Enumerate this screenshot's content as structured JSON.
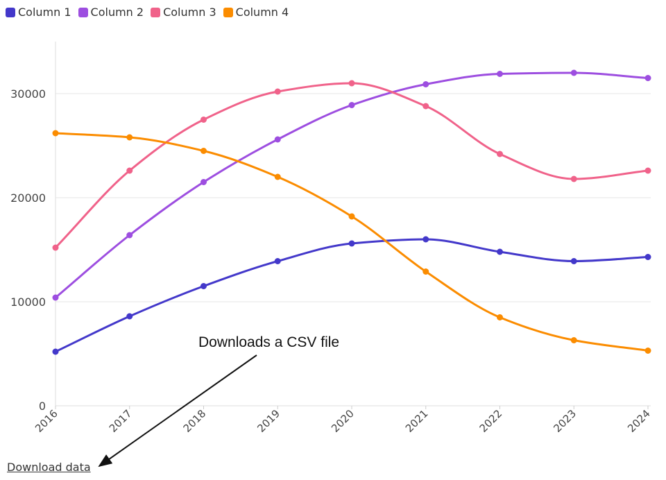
{
  "chart_data": {
    "type": "line",
    "x": [
      "2016",
      "2017",
      "2018",
      "2019",
      "2020",
      "2021",
      "2022",
      "2023",
      "2024"
    ],
    "series": [
      {
        "name": "Column 1",
        "color": "#4338ca",
        "values": [
          5200,
          8600,
          11500,
          13900,
          15600,
          16000,
          14800,
          13900,
          14300
        ]
      },
      {
        "name": "Column 2",
        "color": "#9d4ee0",
        "values": [
          10400,
          16400,
          21500,
          25600,
          28900,
          30900,
          31900,
          32000,
          31500
        ]
      },
      {
        "name": "Column 3",
        "color": "#f0628a",
        "values": [
          15200,
          22600,
          27500,
          30200,
          31000,
          28800,
          24200,
          21800,
          22600
        ]
      },
      {
        "name": "Column 4",
        "color": "#fb8c00",
        "values": [
          26200,
          25800,
          24500,
          22000,
          18200,
          12900,
          8500,
          6300,
          5300
        ]
      }
    ],
    "yticks": [
      "0",
      "10000",
      "20000",
      "30000"
    ],
    "ylim": [
      0,
      35000
    ],
    "grid": true,
    "legend": "top-left",
    "xlabel": "",
    "ylabel": ""
  },
  "annotation": {
    "text": "Downloads a CSV file"
  },
  "download_link": {
    "label": "Download data"
  }
}
